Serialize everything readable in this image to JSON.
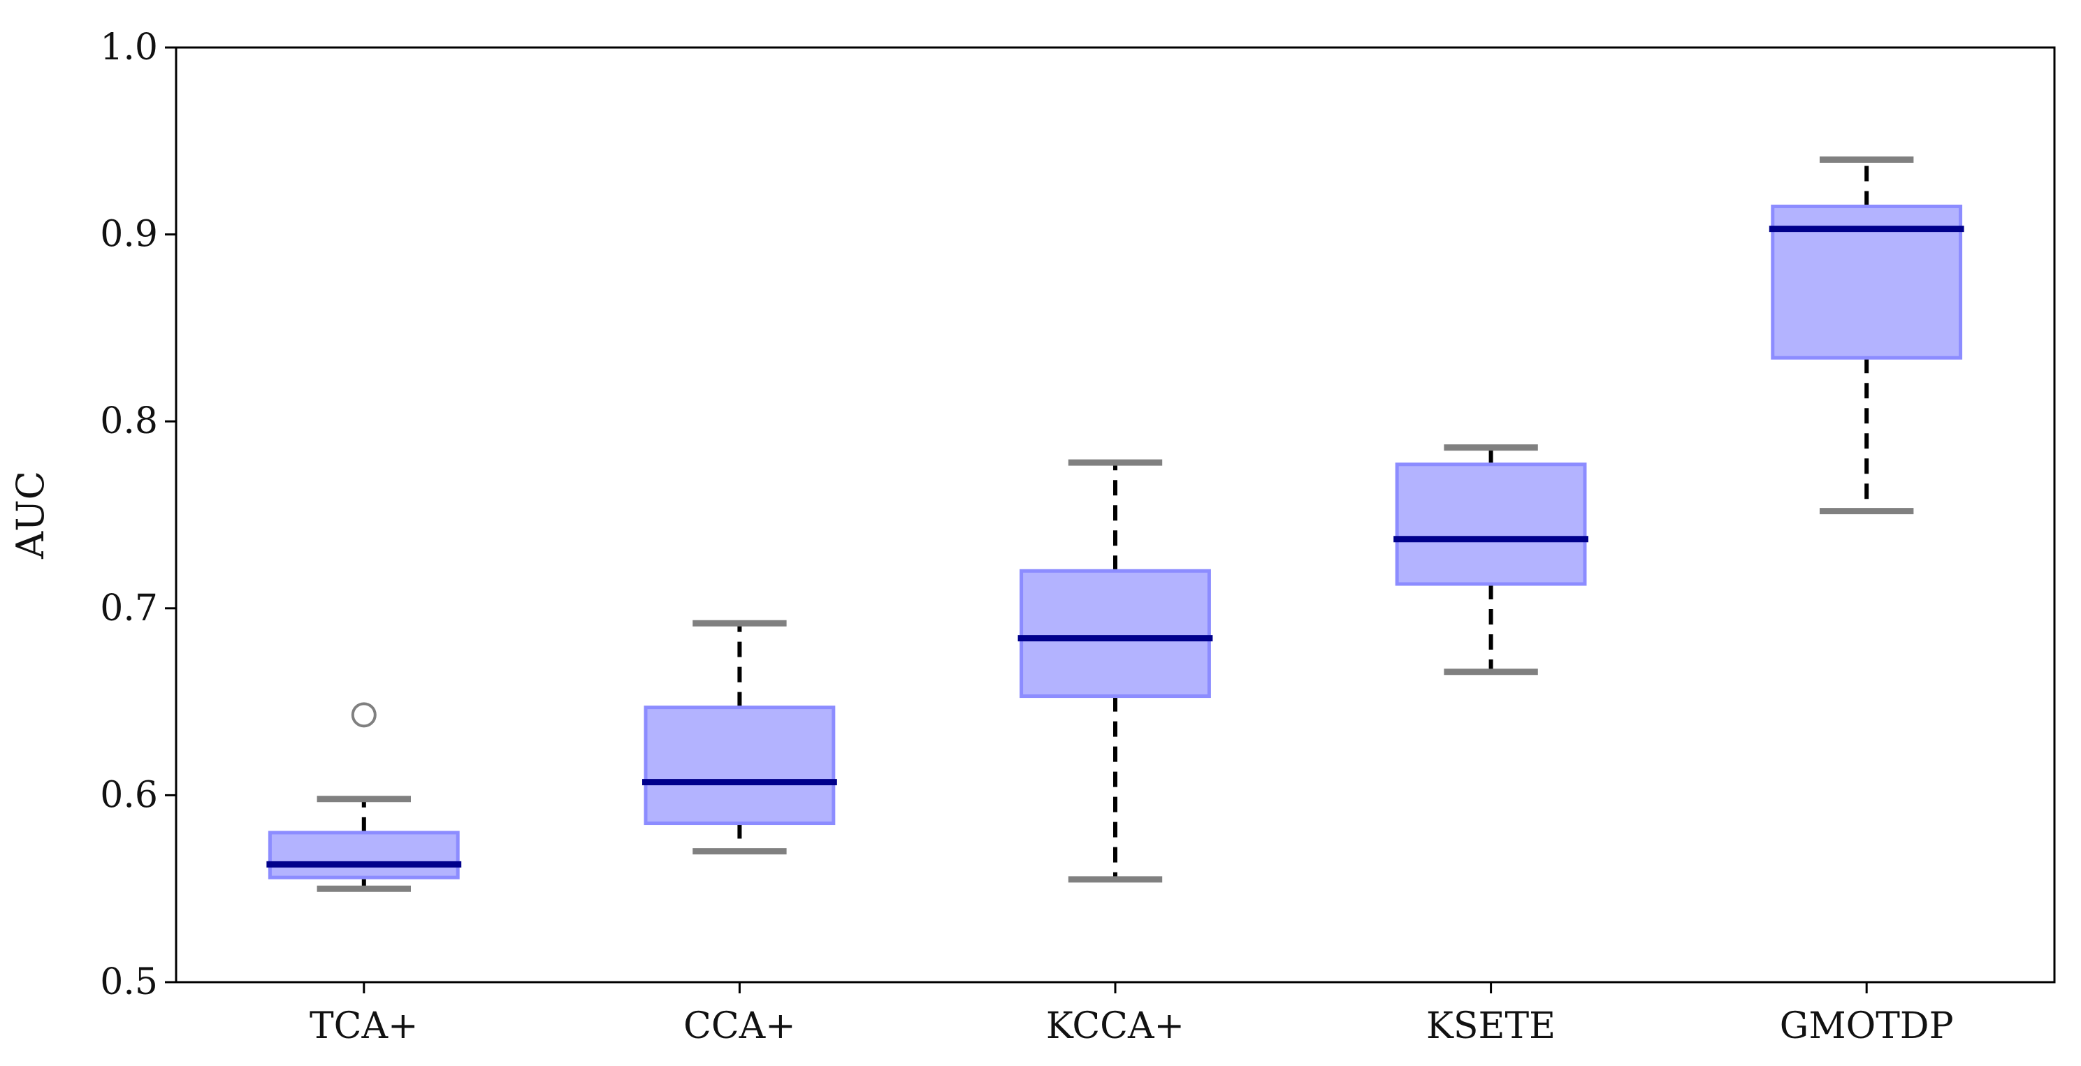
{
  "chart_data": {
    "type": "boxplot",
    "title": "",
    "xlabel": "",
    "ylabel": "AUC",
    "ylim": [
      0.5,
      1.0
    ],
    "yticks": [
      0.5,
      0.6,
      0.7,
      0.8,
      0.9,
      1.0
    ],
    "ytick_labels": [
      "0.5",
      "0.6",
      "0.7",
      "0.8",
      "0.9",
      "1.0"
    ],
    "grid": false,
    "categories": [
      "TCA+",
      "CCA+",
      "KCCA+",
      "KSETE",
      "GMOTDP"
    ],
    "boxes": [
      {
        "name": "TCA+",
        "whisker_low": 0.55,
        "q1": 0.556,
        "median": 0.563,
        "q3": 0.58,
        "whisker_high": 0.598,
        "outliers": [
          0.643
        ]
      },
      {
        "name": "CCA+",
        "whisker_low": 0.57,
        "q1": 0.585,
        "median": 0.607,
        "q3": 0.647,
        "whisker_high": 0.692,
        "outliers": []
      },
      {
        "name": "KCCA+",
        "whisker_low": 0.555,
        "q1": 0.653,
        "median": 0.684,
        "q3": 0.72,
        "whisker_high": 0.778,
        "outliers": []
      },
      {
        "name": "KSETE",
        "whisker_low": 0.666,
        "q1": 0.713,
        "median": 0.737,
        "q3": 0.777,
        "whisker_high": 0.786,
        "outliers": []
      },
      {
        "name": "GMOTDP",
        "whisker_low": 0.752,
        "q1": 0.834,
        "median": 0.903,
        "q3": 0.915,
        "whisker_high": 0.94,
        "outliers": []
      }
    ],
    "colors": {
      "box_fill": "#b3b3ff",
      "box_edge": "#8c8cff",
      "median": "#00008b",
      "whisker": "#000000",
      "cap": "#808080",
      "outlier": "#808080",
      "axis": "#000000"
    }
  }
}
